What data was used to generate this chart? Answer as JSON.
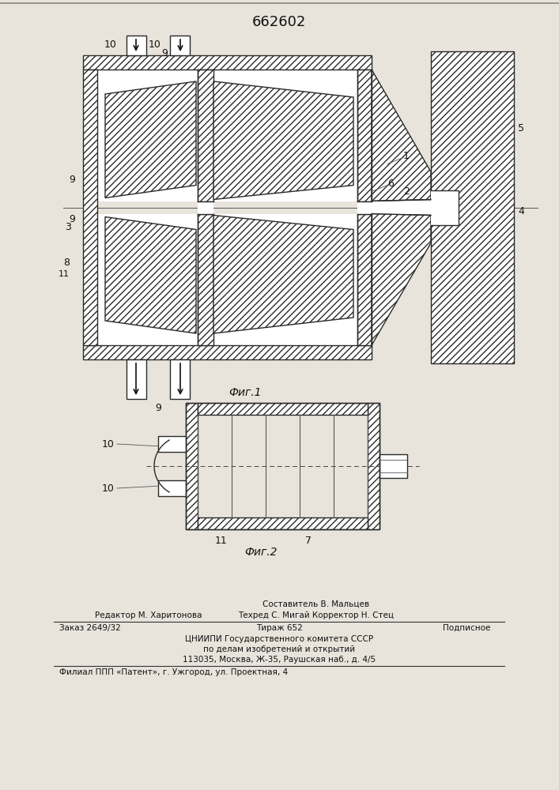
{
  "patent_number": "662602",
  "fig1_label": "Фиг.1",
  "fig2_label": "Фиг.2",
  "footer_line0_center": "Составитель В. Мальцев",
  "footer_line1_left": "Редактор М. Харитонова",
  "footer_line1_center": "Техред С. Мигай Корректор Н. Стец",
  "footer_line2_left": "Заказ 2649/32",
  "footer_line2_center": "Тираж 652",
  "footer_line2_right": "Подписное",
  "footer_line3": "ЦНИИПИ Государственного комитета СССР",
  "footer_line4": "по делам изобретений и открытий",
  "footer_line5": "113035, Москва, Ж-35, Раушская наб., д. 4/5",
  "footer_line6": "Филиал ППП «Патент», г. Ужгород, ул. Проектная, 4",
  "bg_color": "#e8e4dc"
}
